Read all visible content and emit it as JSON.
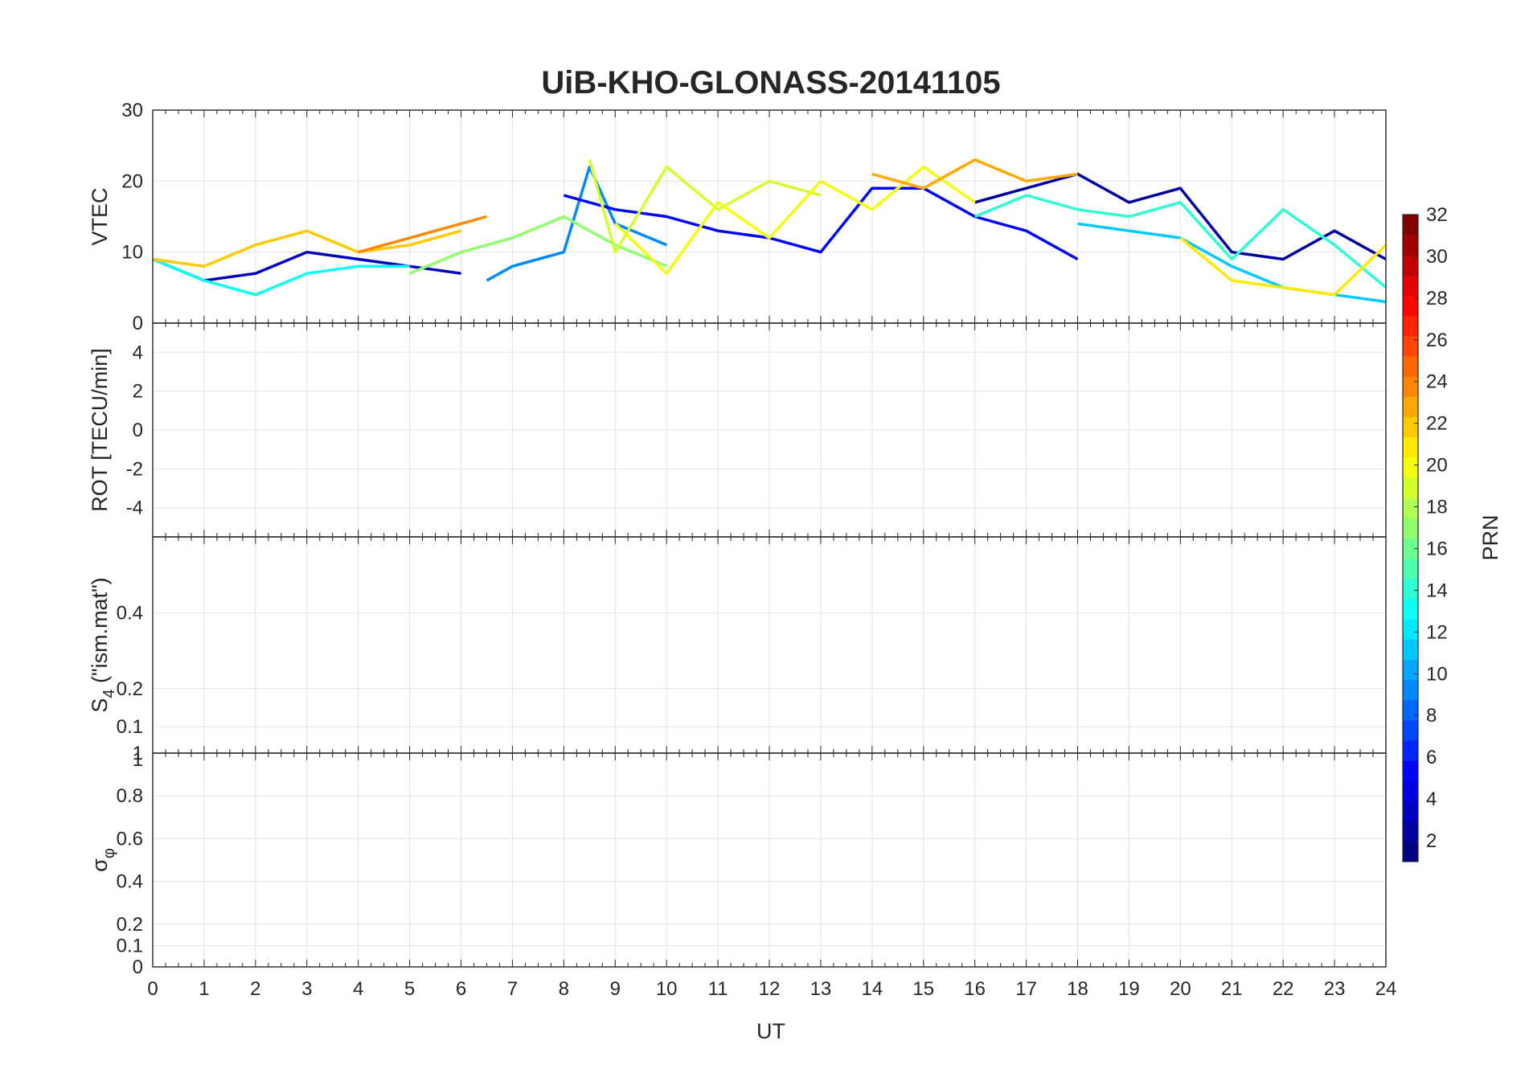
{
  "chart_data": {
    "type": "line",
    "title": "UiB-KHO-GLONASS-20141105",
    "xlabel": "UT",
    "xlim": [
      0,
      24
    ],
    "xticks": [
      "0",
      "1",
      "2",
      "3",
      "4",
      "5",
      "6",
      "7",
      "8",
      "9",
      "10",
      "11",
      "12",
      "13",
      "14",
      "15",
      "16",
      "17",
      "18",
      "19",
      "20",
      "21",
      "22",
      "23",
      "24"
    ],
    "grid": true,
    "panels": [
      {
        "ylabel": "VTEC",
        "ylim": [
          0,
          30
        ],
        "yticks": [
          "0",
          "10",
          "20",
          "30"
        ],
        "series": [
          {
            "prn": 3,
            "x": [
              0,
              1,
              2,
              3,
              4,
              5,
              6
            ],
            "y": [
              9,
              6,
              7,
              10,
              9,
              8,
              7
            ]
          },
          {
            "prn": 9,
            "x": [
              6.5,
              7,
              8,
              8.5,
              9,
              10
            ],
            "y": [
              6,
              8,
              10,
              22,
              14,
              11
            ]
          },
          {
            "prn": 5,
            "x": [
              8,
              9,
              10,
              11,
              12,
              13,
              14,
              15,
              16,
              17,
              18
            ],
            "y": [
              18,
              16,
              15,
              13,
              12,
              10,
              19,
              19,
              15,
              13,
              9
            ]
          },
          {
            "prn": 2,
            "x": [
              16,
              17,
              18,
              19,
              20,
              21,
              22,
              23,
              24
            ],
            "y": [
              17,
              19,
              21,
              17,
              19,
              10,
              9,
              13,
              9
            ]
          },
          {
            "prn": 11,
            "x": [
              18,
              19,
              20,
              21,
              22,
              23,
              24
            ],
            "y": [
              14,
              13,
              12,
              8,
              5,
              4,
              3
            ]
          },
          {
            "prn": 13,
            "x": [
              0,
              1,
              2,
              3,
              4,
              5
            ],
            "y": [
              9,
              6,
              4,
              7,
              8,
              8
            ]
          },
          {
            "prn": 17,
            "x": [
              5,
              6,
              7,
              8,
              9,
              10
            ],
            "y": [
              7,
              10,
              12,
              15,
              11,
              8
            ]
          },
          {
            "prn": 19,
            "x": [
              8.5,
              9,
              10,
              11,
              12,
              13
            ],
            "y": [
              23,
              10,
              22,
              16,
              20,
              18
            ]
          },
          {
            "prn": 20,
            "x": [
              9,
              10,
              11,
              12,
              13,
              14,
              15,
              16
            ],
            "y": [
              14,
              7,
              17,
              12,
              20,
              16,
              22,
              17
            ]
          },
          {
            "prn": 22,
            "x": [
              0,
              1,
              2,
              3,
              4,
              5,
              6
            ],
            "y": [
              9,
              8,
              11,
              13,
              10,
              11,
              13
            ]
          },
          {
            "prn": 23,
            "x": [
              14,
              15,
              16,
              17,
              18
            ],
            "y": [
              21,
              19,
              23,
              20,
              21
            ]
          },
          {
            "prn": 24,
            "x": [
              4,
              5,
              6,
              6.5
            ],
            "y": [
              10,
              12,
              14,
              15
            ]
          },
          {
            "prn": 14,
            "x": [
              16,
              17,
              18,
              19,
              20,
              21,
              22,
              23,
              24
            ],
            "y": [
              15,
              18,
              16,
              15,
              17,
              9,
              16,
              11,
              5
            ]
          },
          {
            "prn": 21,
            "x": [
              20,
              21,
              22,
              23,
              24
            ],
            "y": [
              12,
              6,
              5,
              4,
              11
            ]
          }
        ]
      },
      {
        "ylabel": "ROT [TECU/min]",
        "ylim": [
          -5.5,
          5.5
        ],
        "yticks": [
          "4",
          "2",
          "0",
          "-2",
          "-4"
        ]
      },
      {
        "ylabel": "S4 (\"ism.mat\")",
        "ylabel_main": "S",
        "ylabel_sub": "4",
        "ylabel_rest": " (\"ism.mat\")",
        "ylim": [
          0.03,
          0.6
        ],
        "yticks": [
          "0.4",
          "0.2",
          "0.1"
        ],
        "top_label": "1"
      },
      {
        "ylabel": "σφ",
        "ylabel_main": "σ",
        "ylabel_sub": "φ",
        "ylim": [
          0,
          1
        ],
        "yticks": [
          "0",
          "0.1",
          "0.2",
          "0.4",
          "0.6",
          "0.8",
          "1"
        ]
      }
    ],
    "colorbar": {
      "label": "PRN",
      "colormap": "jet",
      "range": [
        1,
        32
      ],
      "ticks": [
        "2",
        "4",
        "6",
        "8",
        "10",
        "12",
        "14",
        "16",
        "18",
        "20",
        "22",
        "24",
        "26",
        "28",
        "30",
        "32"
      ]
    }
  }
}
